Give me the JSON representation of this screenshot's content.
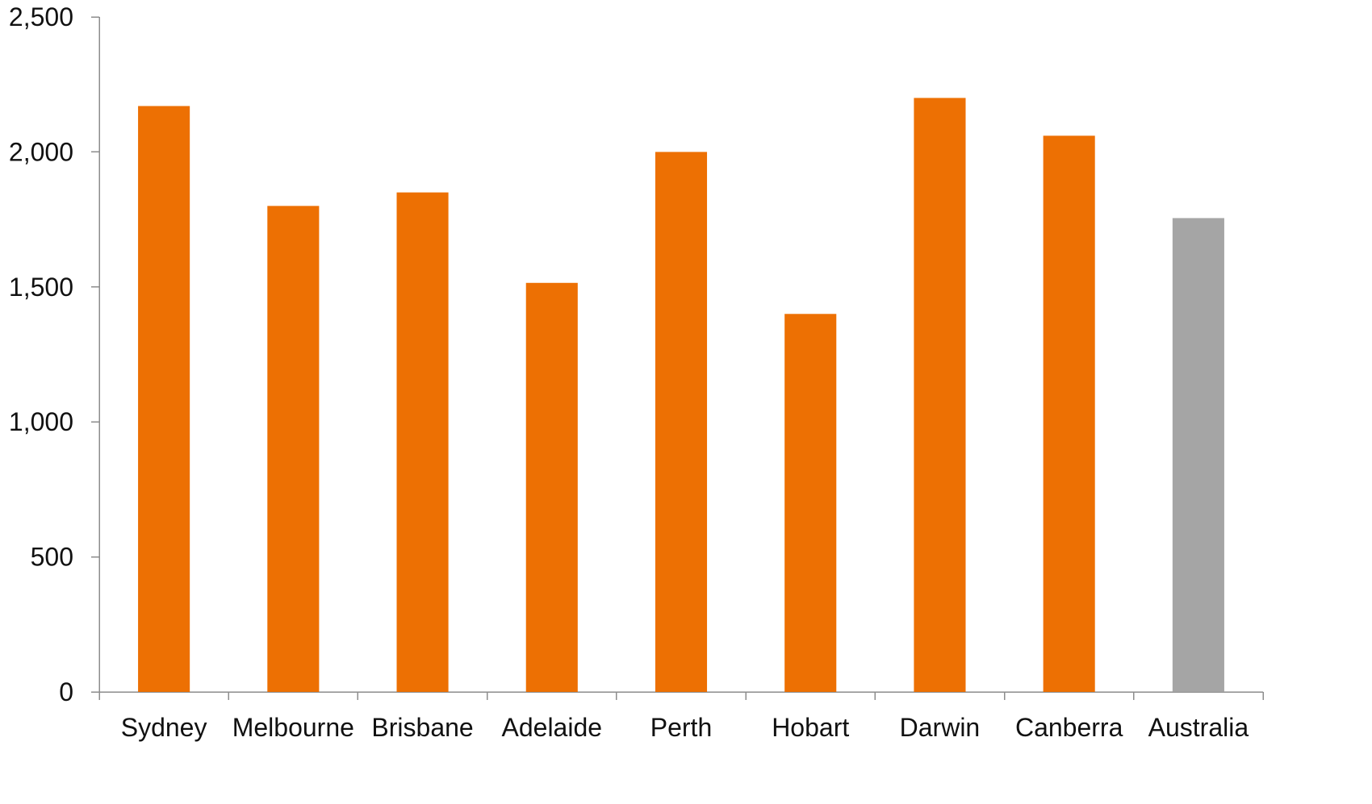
{
  "chart_data": {
    "type": "bar",
    "title": "",
    "xlabel": "",
    "ylabel": "",
    "categories": [
      "Sydney",
      "Melbourne",
      "Brisbane",
      "Adelaide",
      "Perth",
      "Hobart",
      "Darwin",
      "Canberra",
      "Australia"
    ],
    "values": [
      2170,
      1800,
      1850,
      1515,
      2000,
      1400,
      2200,
      2060,
      1755
    ],
    "ylim": [
      0,
      2500
    ],
    "yticks": [
      0,
      500,
      1000,
      1500,
      2000,
      2500
    ],
    "ytick_labels": [
      "0",
      "500",
      "1,000",
      "1,500",
      "2,000",
      "2,500"
    ],
    "grid": false,
    "legend": "none",
    "colors": {
      "bar": "#ED7003",
      "highlight": "#A5A5A5",
      "axis": "#8C8C8C",
      "text": "#111111"
    },
    "highlight_category": "Australia"
  }
}
